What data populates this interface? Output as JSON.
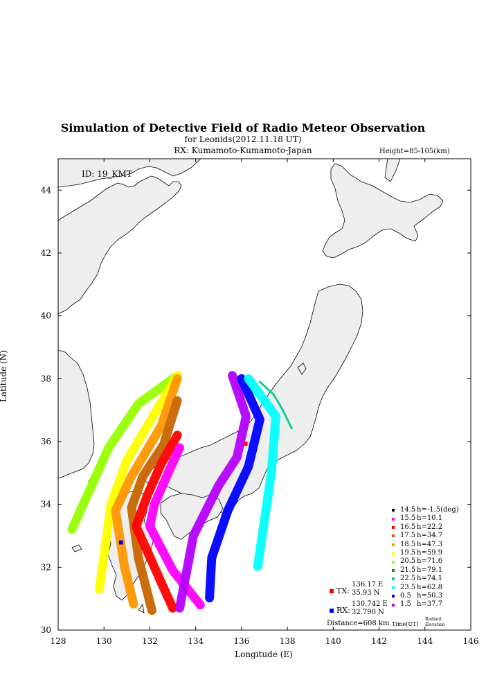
{
  "header": {
    "title": "Simulation of Detective Field of Radio Meteor Observation",
    "subtitle": "for Leonids(2012.11.18 UT)",
    "rx_line": "RX: Kumamoto-Kumamoto-Japan",
    "height": "Height=85-105(km)"
  },
  "map": {
    "id_label": "ID: 19_KMT",
    "xlabel": "Longitude (E)",
    "ylabel": "Latitude (N)",
    "xlim": [
      128,
      146
    ],
    "ylim": [
      30,
      45
    ],
    "xticks": [
      "128",
      "130",
      "132",
      "134",
      "136",
      "138",
      "140",
      "142",
      "144",
      "146"
    ],
    "yticks": [
      "30",
      "32",
      "34",
      "36",
      "38",
      "40",
      "42",
      "44"
    ],
    "land_color": "#eeeeee",
    "tx": {
      "label": "TX:",
      "lon_text": "136.17 E",
      "lat_text": "35.93 N",
      "lon": 136.17,
      "lat": 35.93,
      "color": "#ff0000"
    },
    "rx": {
      "label": "RX:",
      "lon_text": "130.742 E",
      "lat_text": "32.790 N",
      "lon": 130.742,
      "lat": 32.79,
      "color": "#0000ff"
    },
    "distance": "Distance=608 km",
    "time_label": "Time(UT)",
    "radiant_label_1": "Radiant",
    "radiant_label_2": "Elevation"
  },
  "legend": [
    {
      "time": "14.5",
      "elev": "h=-1.5(deg)",
      "color": "#000000"
    },
    {
      "time": "15.5",
      "elev": "h=10.1",
      "color": "#ff00ff"
    },
    {
      "time": "16.5",
      "elev": "h=22.2",
      "color": "#ff0000"
    },
    {
      "time": "17.5",
      "elev": "h=34.7",
      "color": "#c86400"
    },
    {
      "time": "18.5",
      "elev": "h=47.3",
      "color": "#ff9600"
    },
    {
      "time": "19.5",
      "elev": "h=59.9",
      "color": "#ffff00"
    },
    {
      "time": "20.5",
      "elev": "h=71.6",
      "color": "#96ff00"
    },
    {
      "time": "21.5",
      "elev": "h=79.1",
      "color": "#00a000"
    },
    {
      "time": "22.5",
      "elev": "h=74.1",
      "color": "#00c896"
    },
    {
      "time": "23.5",
      "elev": "h=62.8",
      "color": "#00ffff"
    },
    {
      "time": "0.5",
      "elev": "h=50.3",
      "color": "#0000ff"
    },
    {
      "time": "1.5",
      "elev": "h=37.7",
      "color": "#b400ff"
    }
  ],
  "chart_data": {
    "type": "scatter",
    "x_axis": "Longitude (E)",
    "y_axis": "Latitude (N)",
    "xlim": [
      128,
      146
    ],
    "ylim": [
      30,
      45
    ],
    "series": [
      {
        "name": "20.5",
        "color": "#96ff00",
        "path": [
          [
            133.2,
            38.1
          ],
          [
            131.5,
            37.2
          ],
          [
            130.2,
            35.8
          ],
          [
            128.6,
            33.2
          ]
        ]
      },
      {
        "name": "19.5",
        "color": "#ffff00",
        "path": [
          [
            133.2,
            38.1
          ],
          [
            132.3,
            37.0
          ],
          [
            131.0,
            35.4
          ],
          [
            130.3,
            34.0
          ],
          [
            129.8,
            31.3
          ]
        ]
      },
      {
        "name": "18.5",
        "color": "#ff9600",
        "path": [
          [
            133.2,
            38.0
          ],
          [
            132.5,
            36.5
          ],
          [
            131.2,
            34.9
          ],
          [
            130.5,
            33.8
          ],
          [
            130.9,
            32.0
          ],
          [
            131.3,
            30.8
          ]
        ]
      },
      {
        "name": "17.5",
        "color": "#c86400",
        "path": [
          [
            133.2,
            37.3
          ],
          [
            132.6,
            35.9
          ],
          [
            131.7,
            34.9
          ],
          [
            131.2,
            33.9
          ],
          [
            131.5,
            32.3
          ],
          [
            132.1,
            30.6
          ]
        ]
      },
      {
        "name": "16.5",
        "color": "#ff0000",
        "path": [
          [
            133.2,
            36.2
          ],
          [
            132.5,
            35.3
          ],
          [
            131.9,
            34.3
          ],
          [
            131.4,
            33.3
          ],
          [
            132.2,
            32.0
          ],
          [
            133.0,
            30.7
          ]
        ]
      },
      {
        "name": "15.5",
        "color": "#ff00ff",
        "path": [
          [
            133.3,
            35.8
          ],
          [
            132.8,
            35.0
          ],
          [
            132.2,
            34.0
          ],
          [
            132.0,
            33.3
          ],
          [
            133.0,
            31.9
          ],
          [
            134.2,
            30.8
          ]
        ]
      },
      {
        "name": "1.5",
        "color": "#b400ff",
        "path": [
          [
            135.6,
            38.1
          ],
          [
            136.2,
            36.8
          ],
          [
            135.8,
            35.5
          ],
          [
            135.0,
            34.6
          ],
          [
            133.9,
            33.0
          ],
          [
            133.3,
            30.7
          ]
        ]
      },
      {
        "name": "0.5",
        "color": "#0000ff",
        "path": [
          [
            136.0,
            38.0
          ],
          [
            136.8,
            36.7
          ],
          [
            136.3,
            35.2
          ],
          [
            135.4,
            33.8
          ],
          [
            134.7,
            32.3
          ],
          [
            134.6,
            31.0
          ]
        ]
      },
      {
        "name": "23.5",
        "color": "#00ffff",
        "path": [
          [
            136.3,
            38.0
          ],
          [
            137.5,
            36.8
          ],
          [
            137.3,
            35.0
          ],
          [
            137.0,
            33.5
          ],
          [
            136.7,
            32.0
          ]
        ]
      },
      {
        "name": "22.5",
        "color": "#00c896",
        "path": [
          [
            136.8,
            37.9
          ],
          [
            137.4,
            37.5
          ],
          [
            137.8,
            37.0
          ],
          [
            138.2,
            36.4
          ]
        ]
      }
    ]
  }
}
